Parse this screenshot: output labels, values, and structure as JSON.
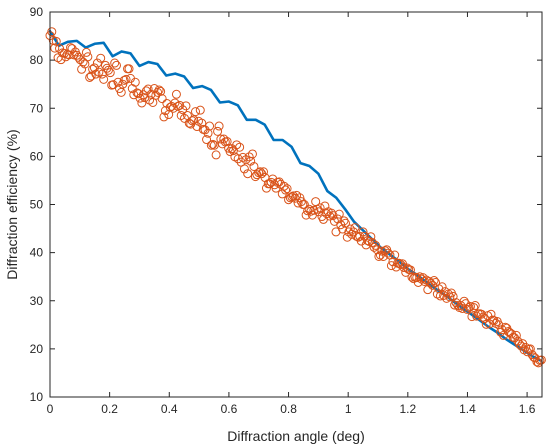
{
  "chart_data": {
    "type": "scatter",
    "title": "",
    "xlabel": "Diffraction angle (deg)",
    "ylabel": "Diffraction efficiency (%)",
    "xlim": [
      0,
      1.65
    ],
    "ylim": [
      10,
      90
    ],
    "xticks": [
      0,
      0.2,
      0.4,
      0.6,
      0.8,
      1.0,
      1.2,
      1.4,
      1.6
    ],
    "xtick_labels": [
      "0",
      "0.2",
      "0.4",
      "0.6",
      "0.8",
      "1",
      "1.2",
      "1.4",
      "1.6"
    ],
    "yticks": [
      10,
      20,
      30,
      40,
      50,
      60,
      70,
      80,
      90
    ],
    "ytick_labels": [
      "10",
      "20",
      "30",
      "40",
      "50",
      "60",
      "70",
      "80",
      "90"
    ],
    "grid": false,
    "legend": "none",
    "series": [
      {
        "kind": "line",
        "color": "#0072BD",
        "x": [
          0,
          0.03,
          0.06,
          0.09,
          0.12,
          0.15,
          0.18,
          0.21,
          0.24,
          0.27,
          0.3,
          0.33,
          0.36,
          0.39,
          0.42,
          0.45,
          0.48,
          0.51,
          0.54,
          0.57,
          0.6,
          0.63,
          0.66,
          0.69,
          0.72,
          0.75,
          0.78,
          0.81,
          0.84,
          0.87,
          0.9,
          0.93,
          0.96,
          0.99,
          1.02,
          1.05,
          1.08,
          1.11,
          1.14,
          1.17,
          1.2,
          1.23,
          1.26,
          1.29,
          1.32,
          1.35,
          1.38,
          1.41,
          1.44,
          1.47,
          1.5,
          1.53,
          1.56,
          1.59,
          1.62,
          1.645
        ],
        "y": [
          86,
          83,
          83.8,
          84,
          82.6,
          83.4,
          83.6,
          80.8,
          81.8,
          81.4,
          78.8,
          79.6,
          79.2,
          76.8,
          77.2,
          76.6,
          74.2,
          74.6,
          73.8,
          71.2,
          71.4,
          70.6,
          67.6,
          67.6,
          66.6,
          63.4,
          63.4,
          62.0,
          58.6,
          58.0,
          56.4,
          52.8,
          51.4,
          49.0,
          46.4,
          44.6,
          42.8,
          41.0,
          39.6,
          38.2,
          36.6,
          35.4,
          34.0,
          32.6,
          31.4,
          30.0,
          28.6,
          27.3,
          26.0,
          24.6,
          23.4,
          22.0,
          20.8,
          19.6,
          18.4,
          17.6
        ]
      },
      {
        "kind": "scatter",
        "color": "#D95319",
        "x": [
          0.0,
          0.006,
          0.011,
          0.016,
          0.021,
          0.027,
          0.032,
          0.037,
          0.042,
          0.048,
          0.053,
          0.058,
          0.064,
          0.069,
          0.074,
          0.08,
          0.085,
          0.09,
          0.095,
          0.101,
          0.106,
          0.111,
          0.117,
          0.122,
          0.127,
          0.133,
          0.138,
          0.143,
          0.149,
          0.154,
          0.159,
          0.164,
          0.17,
          0.175,
          0.18,
          0.186,
          0.191,
          0.196,
          0.202,
          0.207,
          0.212,
          0.217,
          0.223,
          0.228,
          0.233,
          0.239,
          0.244,
          0.249,
          0.255,
          0.26,
          0.265,
          0.27,
          0.276,
          0.281,
          0.286,
          0.292,
          0.297,
          0.302,
          0.308,
          0.313,
          0.318,
          0.323,
          0.329,
          0.334,
          0.339,
          0.345,
          0.35,
          0.355,
          0.361,
          0.366,
          0.371,
          0.376,
          0.382,
          0.387,
          0.392,
          0.398,
          0.403,
          0.408,
          0.414,
          0.419,
          0.424,
          0.429,
          0.435,
          0.44,
          0.445,
          0.451,
          0.456,
          0.461,
          0.467,
          0.472,
          0.477,
          0.482,
          0.488,
          0.493,
          0.498,
          0.504,
          0.509,
          0.514,
          0.52,
          0.525,
          0.53,
          0.535,
          0.541,
          0.546,
          0.551,
          0.557,
          0.562,
          0.567,
          0.573,
          0.578,
          0.583,
          0.588,
          0.594,
          0.599,
          0.604,
          0.61,
          0.615,
          0.62,
          0.626,
          0.631,
          0.636,
          0.641,
          0.647,
          0.652,
          0.657,
          0.663,
          0.668,
          0.673,
          0.679,
          0.684,
          0.689,
          0.694,
          0.7,
          0.705,
          0.71,
          0.716,
          0.721,
          0.726,
          0.732,
          0.737,
          0.742,
          0.747,
          0.753,
          0.758,
          0.763,
          0.769,
          0.774,
          0.779,
          0.785,
          0.79,
          0.795,
          0.8,
          0.806,
          0.811,
          0.816,
          0.822,
          0.827,
          0.832,
          0.838,
          0.843,
          0.848,
          0.853,
          0.859,
          0.864,
          0.869,
          0.875,
          0.88,
          0.885,
          0.891,
          0.896,
          0.901,
          0.906,
          0.912,
          0.917,
          0.922,
          0.928,
          0.933,
          0.938,
          0.944,
          0.949,
          0.954,
          0.959,
          0.965,
          0.97,
          0.975,
          0.981,
          0.986,
          0.991,
          0.997,
          1.002,
          1.007,
          1.012,
          1.018,
          1.023,
          1.028,
          1.034,
          1.039,
          1.044,
          1.05,
          1.055,
          1.06,
          1.065,
          1.071,
          1.076,
          1.081,
          1.087,
          1.092,
          1.097,
          1.103,
          1.108,
          1.113,
          1.118,
          1.124,
          1.129,
          1.134,
          1.14,
          1.145,
          1.15,
          1.156,
          1.161,
          1.166,
          1.171,
          1.177,
          1.182,
          1.187,
          1.193,
          1.198,
          1.203,
          1.209,
          1.214,
          1.219,
          1.224,
          1.23,
          1.235,
          1.24,
          1.246,
          1.251,
          1.256,
          1.262,
          1.267,
          1.272,
          1.277,
          1.283,
          1.288,
          1.293,
          1.299,
          1.304,
          1.309,
          1.315,
          1.32,
          1.325,
          1.33,
          1.336,
          1.341,
          1.346,
          1.352,
          1.357,
          1.362,
          1.368,
          1.373,
          1.378,
          1.383,
          1.389,
          1.394,
          1.399,
          1.405,
          1.41,
          1.415,
          1.421,
          1.426,
          1.431,
          1.436,
          1.442,
          1.447,
          1.452,
          1.458,
          1.463,
          1.468,
          1.474,
          1.479,
          1.484,
          1.489,
          1.495,
          1.5,
          1.505,
          1.511,
          1.516,
          1.521,
          1.527,
          1.532,
          1.537,
          1.542,
          1.548,
          1.553,
          1.558,
          1.564,
          1.569,
          1.574,
          1.58,
          1.585,
          1.59,
          1.595,
          1.601,
          1.606,
          1.611,
          1.617,
          1.622,
          1.627,
          1.633,
          1.638,
          1.643,
          1.648
        ],
        "y": [
          85.1,
          85.9,
          84.1,
          82.5,
          83.9,
          80.5,
          82.4,
          80.1,
          81.5,
          81.4,
          80.7,
          81.2,
          81.1,
          82.6,
          82.4,
          81.1,
          81.7,
          81.0,
          80.6,
          80.1,
          78.1,
          79.6,
          79.2,
          81.6,
          80.7,
          76.4,
          76.7,
          78.1,
          78.4,
          77.1,
          79.4,
          77.5,
          80.4,
          77.1,
          76.0,
          78.9,
          78.3,
          77.9,
          77.4,
          74.8,
          74.9,
          79.4,
          78.9,
          75.4,
          74.1,
          73.3,
          75.0,
          75.8,
          76.0,
          78.2,
          78.2,
          76.2,
          74.1,
          72.8,
          75.4,
          73.2,
          73.0,
          72.1,
          71.1,
          72.8,
          72.2,
          73.6,
          74.0,
          71.7,
          72.9,
          71.2,
          74.1,
          72.7,
          73.3,
          73.8,
          73.5,
          72.0,
          68.2,
          69.5,
          71.0,
          68.7,
          70.2,
          70.4,
          70.0,
          71.1,
          72.9,
          70.4,
          70.6,
          68.5,
          69.7,
          67.9,
          70.5,
          68.5,
          66.9,
          66.7,
          67.4,
          67.6,
          69.3,
          66.2,
          67.3,
          69.6,
          66.9,
          65.6,
          65.5,
          63.5,
          64.8,
          66.3,
          62.3,
          62.5,
          62.3,
          60.3,
          65.2,
          66.3,
          63.6,
          62.6,
          63.6,
          63.0,
          63.1,
          61.7,
          61.0,
          61.6,
          61.2,
          59.9,
          62.4,
          59.5,
          61.9,
          58.8,
          59.8,
          57.4,
          59.3,
          56.4,
          59.9,
          59.0,
          60.5,
          57.9,
          55.8,
          56.2,
          56.6,
          56.8,
          56.4,
          56.8,
          55.6,
          53.4,
          54.3,
          54.3,
          54.6,
          55.3,
          54.1,
          53.4,
          54.6,
          54.7,
          54.2,
          52.2,
          53.8,
          53.0,
          53.3,
          51.0,
          51.4,
          51.6,
          51.8,
          51.3,
          51.9,
          50.3,
          51.4,
          50.6,
          50.0,
          50.0,
          47.8,
          48.7,
          49.0,
          48.6,
          47.8,
          48.8,
          50.6,
          49.0,
          48.5,
          49.3,
          47.5,
          46.9,
          49.7,
          48.1,
          48.5,
          47.6,
          48.2,
          47.7,
          46.5,
          44.3,
          47.0,
          48.0,
          45.8,
          44.9,
          46.6,
          46.1,
          43.2,
          44.3,
          44.9,
          43.8,
          44.3,
          45.2,
          43.4,
          43.2,
          43.4,
          42.4,
          44.3,
          43.4,
          41.6,
          42.5,
          42.3,
          43.3,
          42.1,
          41.1,
          41.5,
          40.6,
          39.2,
          39.5,
          40.3,
          39.2,
          40.4,
          40.6,
          39.9,
          39.5,
          37.3,
          38.1,
          39.5,
          37.0,
          37.8,
          37.8,
          37.5,
          37.7,
          36.9,
          35.9,
          36.8,
          36.5,
          36.4,
          34.9,
          34.6,
          34.9,
          34.8,
          33.8,
          35.0,
          34.5,
          34.8,
          34.0,
          34.3,
          32.3,
          34.0,
          33.6,
          33.2,
          34.2,
          33.8,
          31.4,
          32.5,
          31.0,
          32.9,
          31.1,
          31.9,
          30.5,
          31.4,
          30.8,
          31.6,
          30.9,
          29.1,
          29.6,
          29.0,
          28.6,
          29.0,
          28.4,
          29.9,
          29.4,
          28.2,
          28.6,
          28.8,
          26.7,
          28.6,
          29.0,
          26.8,
          27.3,
          27.3,
          27.2,
          26.6,
          26.3,
          25.1,
          26.9,
          25.2,
          27.2,
          26.0,
          25.9,
          25.3,
          25.7,
          25.0,
          23.5,
          24.0,
          22.8,
          24.5,
          24.3,
          23.6,
          23.4,
          23.1,
          22.4,
          22.3,
          22.8,
          21.6,
          21.0,
          20.6,
          21.1,
          19.8,
          20.3,
          19.4,
          19.9,
          20.0,
          18.8,
          18.3,
          18.1,
          17.3,
          17.1,
          17.6,
          17.7
        ]
      }
    ]
  }
}
